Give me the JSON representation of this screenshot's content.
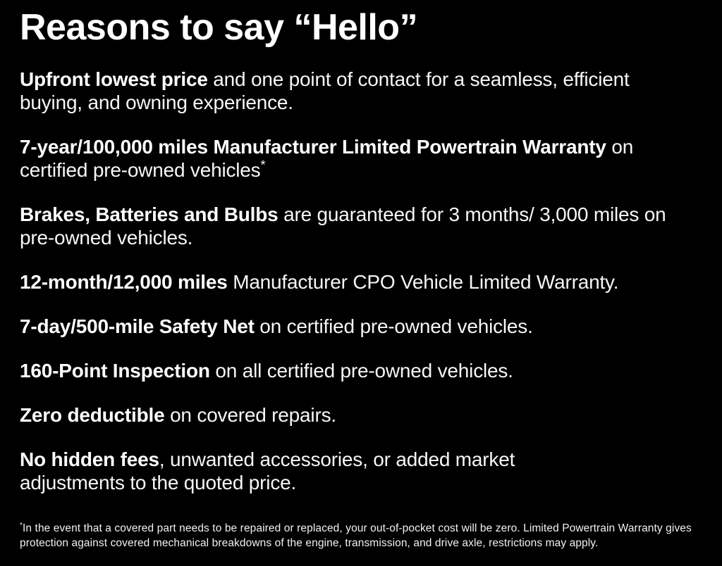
{
  "page": {
    "background_color": "#000000",
    "text_color": "#ffffff"
  },
  "title": "Reasons to say “Hello”",
  "bullets": [
    {
      "bold": "Upfront lowest price",
      "rest": " and one point of contact for a seamless, efficient buying, and owning experience.",
      "superscript": ""
    },
    {
      "bold": "7-year/100,000 miles Manufacturer Limited Powertrain Warranty",
      "rest": " on certified pre-owned vehicles",
      "superscript": "*"
    },
    {
      "bold": "Brakes, Batteries and Bulbs",
      "rest": " are guaranteed for 3 months/ 3,000 miles on pre-owned vehicles.",
      "superscript": ""
    },
    {
      "bold": "12-month/12,000 miles",
      "rest": " Manufacturer CPO Vehicle Limited Warranty.",
      "superscript": ""
    },
    {
      "bold": "7-day/500-mile Safety Net",
      "rest": " on certified pre-owned vehicles.",
      "superscript": ""
    },
    {
      "bold": "160-Point Inspection",
      "rest": " on all certified pre-owned vehicles.",
      "superscript": ""
    },
    {
      "bold": "Zero deductible",
      "rest": " on covered repairs.",
      "superscript": ""
    },
    {
      "bold": "No hidden fees",
      "rest": ", unwanted accessories, or added market adjustments to the quoted price.",
      "superscript": ""
    }
  ],
  "footnote": {
    "marker": "*",
    "text": "In the event that a covered part needs to be repaired or replaced, your out-of-pocket cost will be zero. Limited Powertrain Warranty gives protection against covered mechanical breakdowns of the engine, transmission, and drive axle, restrictions may apply."
  }
}
